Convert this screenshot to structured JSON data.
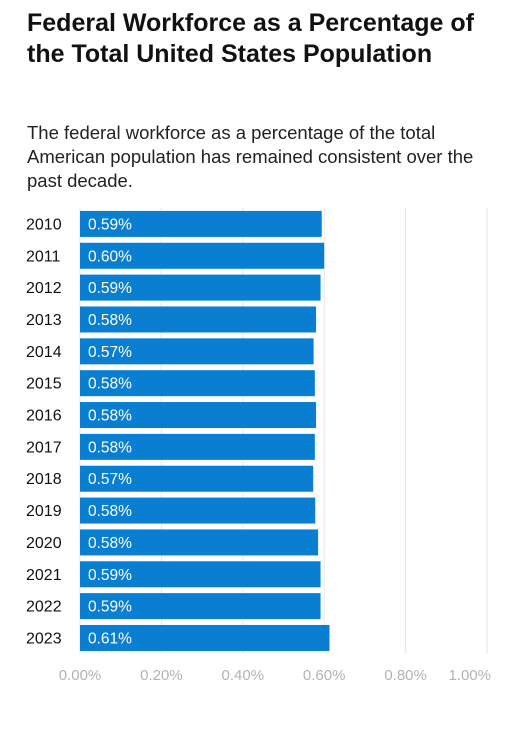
{
  "title": "Federal Workforce as a Percentage of the Total United States Population",
  "subtitle": "The federal workforce as a percentage of the total American population has remained consistent over the past decade.",
  "chart_data": {
    "type": "bar",
    "orientation": "horizontal",
    "title": "Federal Workforce as a Percentage of the Total United States Population",
    "subtitle": "The federal workforce as a percentage of the total American population has remained consistent over the past decade.",
    "categories": [
      "2010",
      "2011",
      "2012",
      "2013",
      "2014",
      "2015",
      "2016",
      "2017",
      "2018",
      "2019",
      "2020",
      "2021",
      "2022",
      "2023"
    ],
    "values": [
      0.594,
      0.6,
      0.591,
      0.58,
      0.574,
      0.577,
      0.58,
      0.577,
      0.573,
      0.578,
      0.585,
      0.591,
      0.591,
      0.613
    ],
    "data_labels": [
      "0.59%",
      "0.60%",
      "0.59%",
      "0.58%",
      "0.57%",
      "0.58%",
      "0.58%",
      "0.58%",
      "0.57%",
      "0.58%",
      "0.58%",
      "0.59%",
      "0.59%",
      "0.61%"
    ],
    "x_ticks": [
      "0.00%",
      "0.20%",
      "0.40%",
      "0.60%",
      "0.80%",
      "1.00%"
    ],
    "xlim": [
      0,
      1.0
    ],
    "xlabel": "",
    "ylabel": "",
    "grid": true,
    "bar_color": "#0a7fd2",
    "grid_color": "#e6e6e6"
  }
}
